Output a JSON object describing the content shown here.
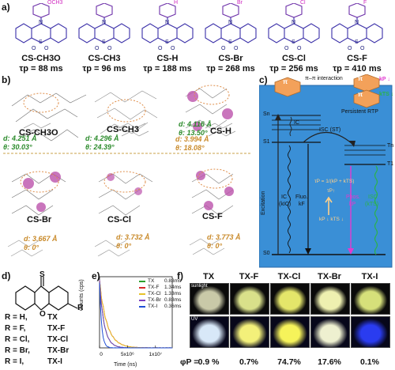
{
  "panel_a": {
    "label": "a)",
    "molecules": [
      {
        "substituent": "OCH3",
        "name": "CS-CH3O",
        "tau": "τp = 88 ms"
      },
      {
        "substituent": "",
        "name": "CS-CH3",
        "tau": "τp = 96 ms"
      },
      {
        "substituent": "H",
        "name": "CS-H",
        "tau": "τp = 188 ms"
      },
      {
        "substituent": "Br",
        "name": "CS-Br",
        "tau": "τp = 268 ms"
      },
      {
        "substituent": "Cl",
        "name": "CS-Cl",
        "tau": "τp = 256 ms"
      },
      {
        "substituent": "F",
        "name": "CS-F",
        "tau": "τp = 410 ms"
      }
    ],
    "atom_labels": {
      "n": "N",
      "s": "S",
      "o": "O"
    }
  },
  "panel_b": {
    "label": "b)",
    "crystals": [
      {
        "name": "CS-CH3O",
        "d": "d: 4.251 Å",
        "theta": "θ: 30.03°"
      },
      {
        "name": "CS-CH3",
        "d": "d: 4.296 Å",
        "theta": "θ: 24.39°"
      },
      {
        "name": "CS-H",
        "d": "d: 4.116 Å",
        "theta": "θ: 13.50°",
        "d2": "d: 3.994 Å",
        "theta2": "θ: 18.08°"
      },
      {
        "name": "CS-Br",
        "d": "d: 3.667 Å",
        "theta": "θ: 0°"
      },
      {
        "name": "CS-Cl",
        "d": "d: 3.732 Å",
        "theta": "θ: 0°"
      },
      {
        "name": "CS-F",
        "d": "d: 3.773 Å",
        "theta": "θ: 0°"
      }
    ]
  },
  "panel_c": {
    "label": "c)",
    "pi_label": "π",
    "interaction": "π–π interaction",
    "persistent": "Persistent RTP",
    "kp_down": "kP ↓",
    "kts_down": "kTS ↓",
    "levels": {
      "sn": "Sn",
      "s1": "S1",
      "tn": "Tn",
      "t1": "T1",
      "s0": "S0"
    },
    "ic_top": "IC",
    "isc_st": "ISC (ST)",
    "excitation": "Excitation",
    "ic_kic": "IC",
    "ic_kic_sub": "(kIC)",
    "fluo": "Fluo.",
    "fluo_sub": "kF",
    "tau_formula": "τP = 1/(kP + kTS)",
    "tau_up": "τP↑",
    "kp_kts_down": "kP ↓  kTS ↓",
    "phos": "Phos.",
    "phos_sub": "kP",
    "isc_ts": "ISC",
    "isc_ts_sub": "(kTS)"
  },
  "panel_d": {
    "label": "d)",
    "s_atom": "S",
    "o_atom": "O",
    "r_group": "R",
    "rows": [
      {
        "r": "R = H,",
        "name": "TX"
      },
      {
        "r": "R = F,",
        "name": "TX-F"
      },
      {
        "r": "R = Cl,",
        "name": "TX-Cl"
      },
      {
        "r": "R = Br,",
        "name": "TX-Br"
      },
      {
        "r": "R = I,",
        "name": "TX-I"
      }
    ]
  },
  "panel_e": {
    "label": "e)",
    "chart_data": {
      "type": "line",
      "xlabel": "Time (ns)",
      "ylabel": "Counts (cps)",
      "x_ticks": [
        "0",
        "5x10⁶",
        "1x10⁷"
      ],
      "x_tick_values": [
        0,
        5000000,
        10000000
      ],
      "xlim": [
        0,
        13000000
      ],
      "ylim": [
        0,
        1
      ],
      "series": [
        {
          "name": "TX",
          "lifetime": "0.83ms",
          "color": "#2ca02c",
          "tau_ns": 830000
        },
        {
          "name": "TX-F",
          "lifetime": "1.34ms",
          "color": "#d62728",
          "tau_ns": 1340000
        },
        {
          "name": "TX-Cl",
          "lifetime": "1.33ms",
          "color": "#e6c229",
          "tau_ns": 1330000
        },
        {
          "name": "TX-Br",
          "lifetime": "0.83ms",
          "color": "#7b3fbf",
          "tau_ns": 830000
        },
        {
          "name": "TX-I",
          "lifetime": "0.36ms",
          "color": "#1f4fd6",
          "tau_ns": 360000
        }
      ]
    }
  },
  "panel_f": {
    "label": "f)",
    "row_labels": {
      "sunlight": "sunlight",
      "uv": "UV"
    },
    "phi_label": "φP =",
    "samples": [
      {
        "name": "TX",
        "phi": "0.9 %",
        "sun_color": "#c9c9a8",
        "uv_color": "#d8e8f8"
      },
      {
        "name": "TX-F",
        "phi": "0.7%",
        "sun_color": "#d9e08a",
        "uv_color": "#f3f07a"
      },
      {
        "name": "TX-Cl",
        "phi": "74.7%",
        "sun_color": "#e4e66a",
        "uv_color": "#f6f35a"
      },
      {
        "name": "TX-Br",
        "phi": "17.6%",
        "sun_color": "#eef0b0",
        "uv_color": "#eef0d0"
      },
      {
        "name": "TX-I",
        "phi": "0.1%",
        "sun_color": "#d6e07a",
        "uv_color": "#2a3cf0"
      }
    ]
  }
}
